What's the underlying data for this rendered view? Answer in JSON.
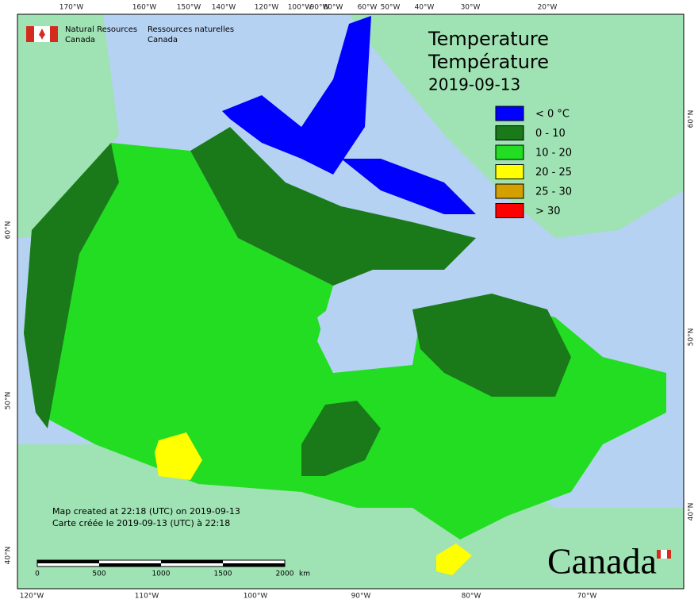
{
  "header": {
    "agency_en": "Natural Resources",
    "agency_en2": "Canada",
    "agency_fr": "Ressources naturelles",
    "agency_fr2": "Canada"
  },
  "title": {
    "line1": "Temperature",
    "line2": "Température",
    "date": "2019-09-13"
  },
  "legend": [
    {
      "label": "< 0 °C",
      "color": "#0000ff"
    },
    {
      "label": "0 - 10",
      "color": "#1a7a1a"
    },
    {
      "label": "10 - 20",
      "color": "#22dd22"
    },
    {
      "label": "20 - 25",
      "color": "#ffff00"
    },
    {
      "label": "25 - 30",
      "color": "#d4a000"
    },
    {
      "label": "> 30",
      "color": "#ff0000"
    }
  ],
  "top_axis": [
    "170°W",
    "160°W",
    "150°W",
    "140°W",
    "120°W",
    "100°W",
    "90°W",
    "80°W",
    "60°W",
    "50°W",
    "40°W",
    "30°W",
    "20°W"
  ],
  "bottom_axis": [
    "120°W",
    "110°W",
    "100°W",
    "90°W",
    "80°W",
    "70°W"
  ],
  "left_axis": [
    "60°N",
    "50°N",
    "40°N"
  ],
  "right_axis": [
    "60°N",
    "50°N",
    "40°N"
  ],
  "notes": {
    "en": "Map created at 22:18 (UTC) on 2019-09-13",
    "fr": "Carte créée le 2019-09-13 (UTC) à 22:18"
  },
  "scale": [
    "0",
    "500",
    "1000",
    "1500",
    "2000",
    "km"
  ],
  "wordmark": "Canada"
}
